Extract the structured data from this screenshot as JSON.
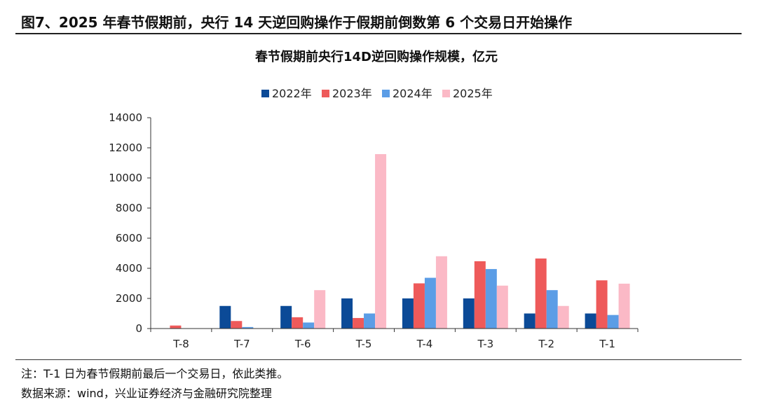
{
  "figure_title": "图7、2025 年春节假期前，央行 14 天逆回购操作于假期前倒数第 6 个交易日开始操作",
  "note": "注：T-1 日为春节假期前最后一个交易日，依此类推。",
  "source": "数据来源：wind，兴业证券经济与金融研究院整理",
  "chart_data": {
    "type": "bar",
    "title": "春节假期前央行14D逆回购操作规模，亿元",
    "xlabel": "",
    "ylabel": "",
    "categories": [
      "T-8",
      "T-7",
      "T-6",
      "T-5",
      "T-4",
      "T-3",
      "T-2",
      "T-1"
    ],
    "ylim": [
      0,
      14000
    ],
    "yticks": [
      0,
      2000,
      4000,
      6000,
      8000,
      10000,
      12000,
      14000
    ],
    "grid": false,
    "legend_position": "top",
    "series": [
      {
        "name": "2022年",
        "color": "#0b4a97",
        "values": [
          0,
          1500,
          1500,
          2000,
          2000,
          2000,
          1000,
          1000
        ]
      },
      {
        "name": "2023年",
        "color": "#ee5a5a",
        "values": [
          200,
          500,
          750,
          700,
          3000,
          4470,
          4650,
          3200
        ]
      },
      {
        "name": "2024年",
        "color": "#5b9de6",
        "values": [
          0,
          100,
          400,
          1000,
          3370,
          3950,
          2550,
          900
        ]
      },
      {
        "name": "2025年",
        "color": "#fbb9c6",
        "values": [
          0,
          0,
          2550,
          11580,
          4800,
          2850,
          1500,
          2980
        ]
      }
    ]
  }
}
